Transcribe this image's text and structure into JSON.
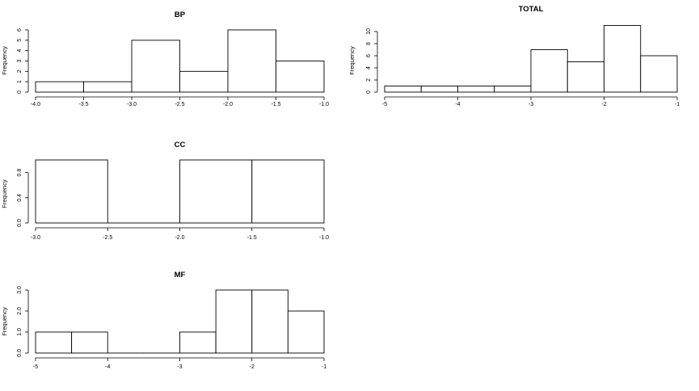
{
  "chart_data": [
    {
      "type": "bar",
      "title": "BP",
      "xlabel": "",
      "ylabel": "Frequency",
      "breaks": [
        -4.0,
        -3.5,
        -3.0,
        -2.5,
        -2.0,
        -1.5,
        -1.0
      ],
      "values": [
        1,
        1,
        5,
        2,
        6,
        3
      ],
      "xticks": [
        -4.0,
        -3.5,
        -3.0,
        -2.5,
        -2.0,
        -1.5,
        -1.0
      ],
      "xtick_labels": [
        "-4.0",
        "-3.5",
        "-3.0",
        "-2.5",
        "-2.0",
        "-1.5",
        "-1.0"
      ],
      "yticks": [
        0,
        1,
        2,
        3,
        4,
        5,
        6
      ],
      "ytick_labels": [
        "0",
        "1",
        "2",
        "3",
        "4",
        "5",
        "6"
      ],
      "xlim": [
        -4.0,
        -1.0
      ],
      "ylim": [
        0,
        6
      ],
      "grid": false
    },
    {
      "type": "bar",
      "title": "TOTAL",
      "xlabel": "",
      "ylabel": "Frequency",
      "breaks": [
        -5.0,
        -4.5,
        -4.0,
        -3.5,
        -3.0,
        -2.5,
        -2.0,
        -1.5,
        -1.0
      ],
      "values": [
        1,
        1,
        1,
        1,
        7,
        5,
        11,
        6
      ],
      "xticks": [
        -5,
        -4,
        -3,
        -2,
        -1
      ],
      "xtick_labels": [
        "-5",
        "-4",
        "-3",
        "-2",
        "-1"
      ],
      "yticks": [
        0,
        2,
        4,
        6,
        8,
        10
      ],
      "ytick_labels": [
        "0",
        "2",
        "4",
        "6",
        "8",
        "10"
      ],
      "xlim": [
        -5,
        -1
      ],
      "ylim": [
        0,
        10
      ],
      "grid": false
    },
    {
      "type": "bar",
      "title": "CC",
      "xlabel": "",
      "ylabel": "Frequency",
      "breaks": [
        -3.0,
        -2.5,
        -2.0,
        -1.5,
        -1.0
      ],
      "values": [
        1,
        0,
        1,
        1
      ],
      "xticks": [
        -3.0,
        -2.5,
        -2.0,
        -1.5,
        -1.0
      ],
      "xtick_labels": [
        "-3.0",
        "-2.5",
        "-2.0",
        "-1.5",
        "-1.0"
      ],
      "yticks": [
        0.0,
        0.4,
        0.8
      ],
      "ytick_labels": [
        "0.0",
        "0.4",
        "0.8"
      ],
      "xlim": [
        -3.0,
        -1.0
      ],
      "ylim": [
        0,
        1
      ],
      "grid": false
    },
    {
      "type": "bar",
      "title": "MF",
      "xlabel": "",
      "ylabel": "Frequency",
      "breaks": [
        -5.0,
        -4.5,
        -4.0,
        -3.5,
        -3.0,
        -2.5,
        -2.0,
        -1.5,
        -1.0
      ],
      "values": [
        1,
        1,
        0,
        0,
        1,
        3,
        3,
        2
      ],
      "xticks": [
        -5,
        -4,
        -3,
        -2,
        -1
      ],
      "xtick_labels": [
        "-5",
        "-4",
        "-3",
        "-2",
        "-1"
      ],
      "yticks": [
        0.0,
        1.0,
        2.0,
        3.0
      ],
      "ytick_labels": [
        "0.0",
        "1.0",
        "2.0",
        "3.0"
      ],
      "xlim": [
        -5,
        -1
      ],
      "ylim": [
        0,
        3
      ],
      "grid": false
    }
  ]
}
